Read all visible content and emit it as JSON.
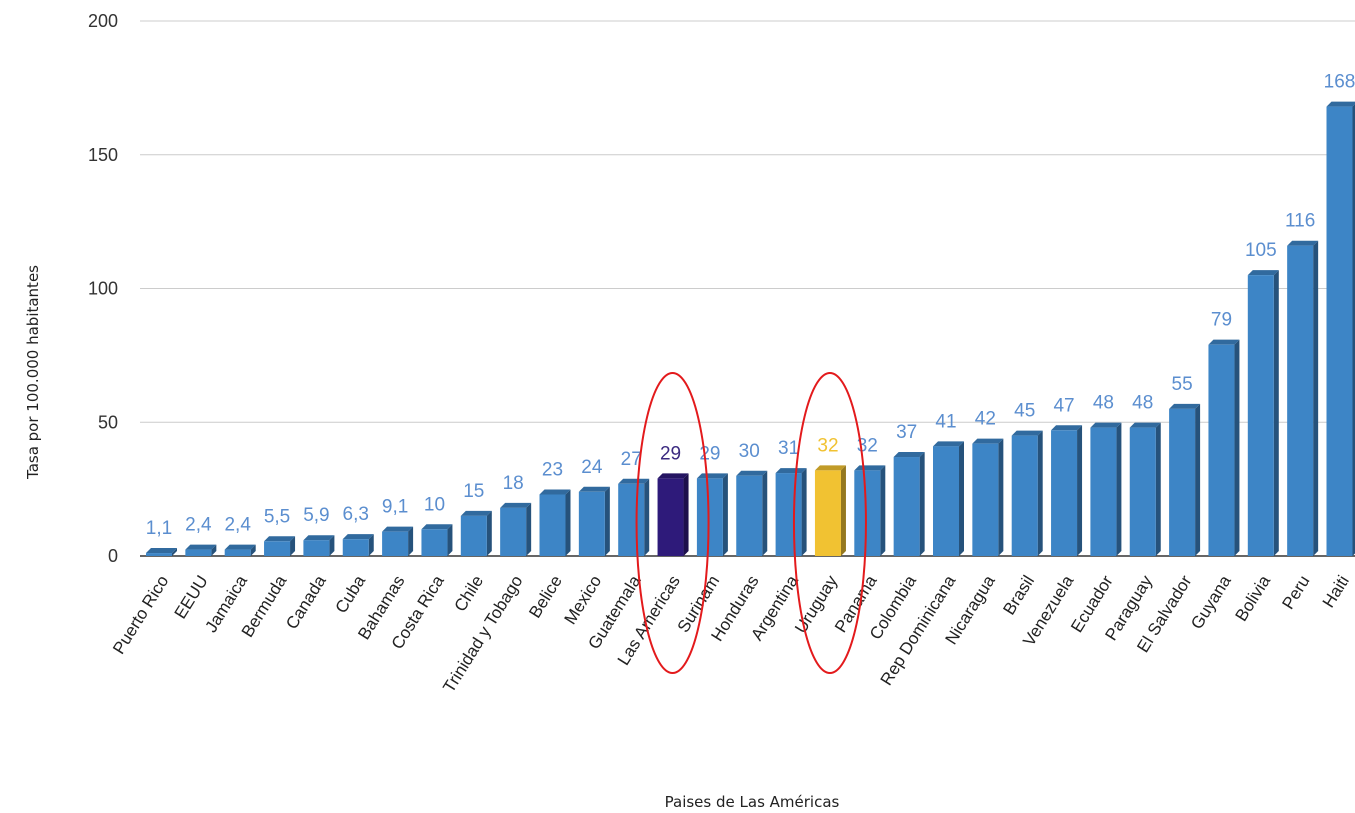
{
  "chart_data": {
    "type": "bar",
    "xlabel": "Paises de Las Américas",
    "ylabel": "Tasa por 100.000 habitantes",
    "ylim": [
      0,
      200
    ],
    "yticks": [
      0,
      50,
      100,
      150,
      200
    ],
    "grid": true,
    "categories": [
      "Puerto Rico",
      "EEUU",
      "Jamaica",
      "Bermuda",
      "Canada",
      "Cuba",
      "Bahamas",
      "Costa Rica",
      "Chile",
      "Trinidad y Tobago",
      "Belice",
      "Mexico",
      "Guatemala",
      "Las Americas",
      "Surinam",
      "Honduras",
      "Argentina",
      "Uruguay",
      "Panama",
      "Colombia",
      "Rep Dominicana",
      "Nicaragua",
      "Brasil",
      "Venezuela",
      "Ecuador",
      "Paraguay",
      "El Salvador",
      "Guyana",
      "Bolivia",
      "Peru",
      "Haiti"
    ],
    "values": [
      1.1,
      2.4,
      2.4,
      5.5,
      5.9,
      6.3,
      9.1,
      10,
      15,
      18,
      23,
      24,
      27,
      29,
      29,
      30,
      31,
      32,
      32,
      37,
      41,
      42,
      45,
      47,
      48,
      48,
      55,
      79,
      105,
      116,
      168
    ],
    "value_labels": [
      "1,1",
      "2,4",
      "2,4",
      "5,5",
      "5,9",
      "6,3",
      "9,1",
      "10",
      "15",
      "18",
      "23",
      "24",
      "27",
      "29",
      "29",
      "30",
      "31",
      "32",
      "32",
      "37",
      "41",
      "42",
      "45",
      "47",
      "48",
      "48",
      "55",
      "79",
      "105",
      "116",
      "168"
    ],
    "colors": {
      "default": "#3d85c6",
      "Las Americas": "#2e1a7a",
      "Uruguay": "#f1c232",
      "default_label": "#5b8ecf",
      "Las Americas_label": "#3b2a80",
      "Uruguay_label": "#f1c232",
      "highlight_ellipse": "#e31a1c"
    },
    "highlighted": [
      "Las Americas",
      "Uruguay"
    ]
  }
}
